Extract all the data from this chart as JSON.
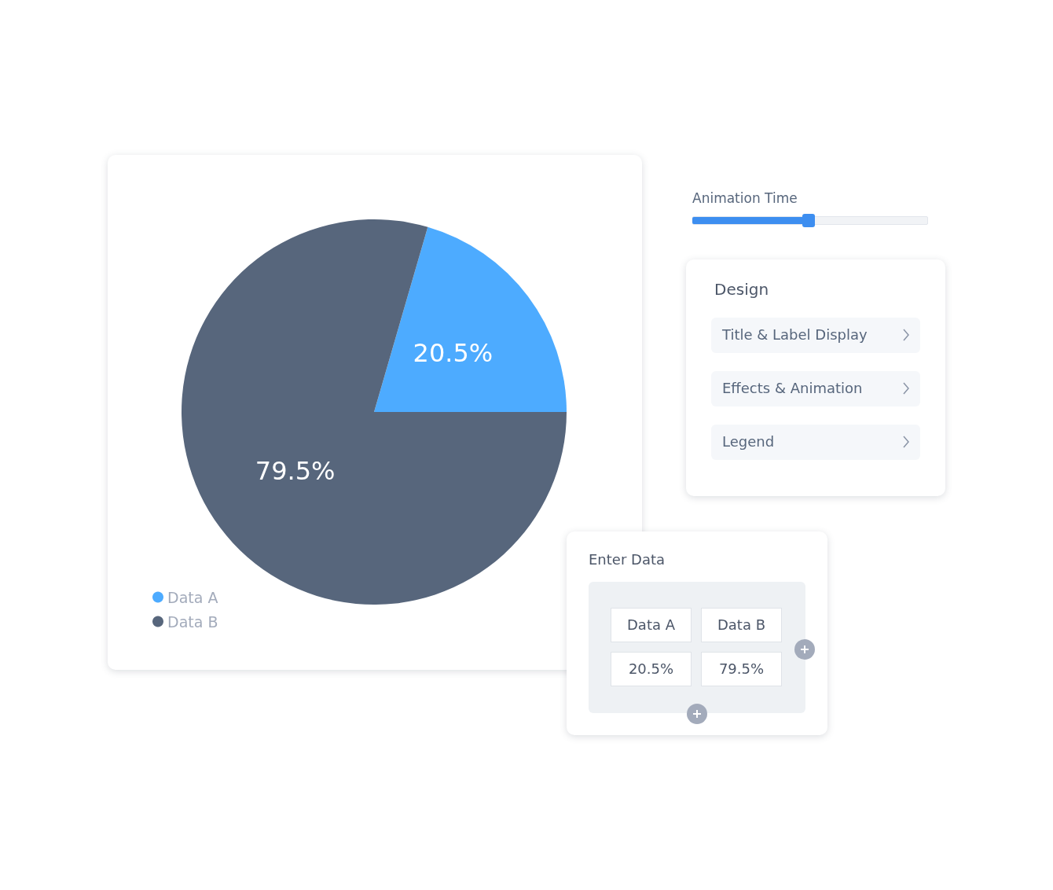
{
  "chart_data": [
    {
      "type": "pie",
      "categories": [
        "Data A",
        "Data B"
      ],
      "values": [
        20.5,
        79.5
      ],
      "colors": [
        "#4dabff",
        "#57667c"
      ],
      "legend": "bottom left",
      "value_labels": [
        "20.5%",
        "79.5%"
      ]
    },
    {
      "type": "other",
      "title": "Animation Time"
    },
    {
      "type": "other",
      "title": "Design",
      "annotations": [
        "Title & Label Display",
        "Effects & Animation",
        "Legend"
      ]
    },
    {
      "type": "other",
      "title": "Enter Data",
      "annotations": [
        "Data A",
        "Data B",
        "20.5%",
        "79.5%"
      ]
    }
  ]
}
